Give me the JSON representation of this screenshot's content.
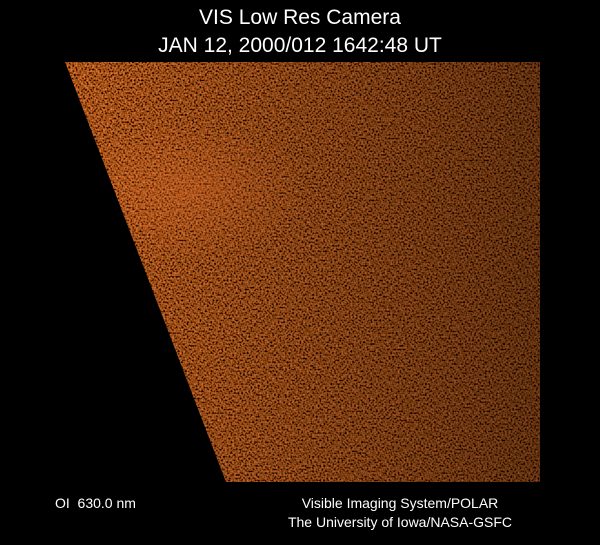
{
  "header": {
    "title": "VIS Low Res Camera",
    "timestamp": "JAN 12, 2000/012 1642:48 UT"
  },
  "footer": {
    "filter": "OI  630.0 nm",
    "credit": [
      "Visible Imaging System/POLAR",
      "The University of Iowa/NASA-GSFC"
    ]
  }
}
